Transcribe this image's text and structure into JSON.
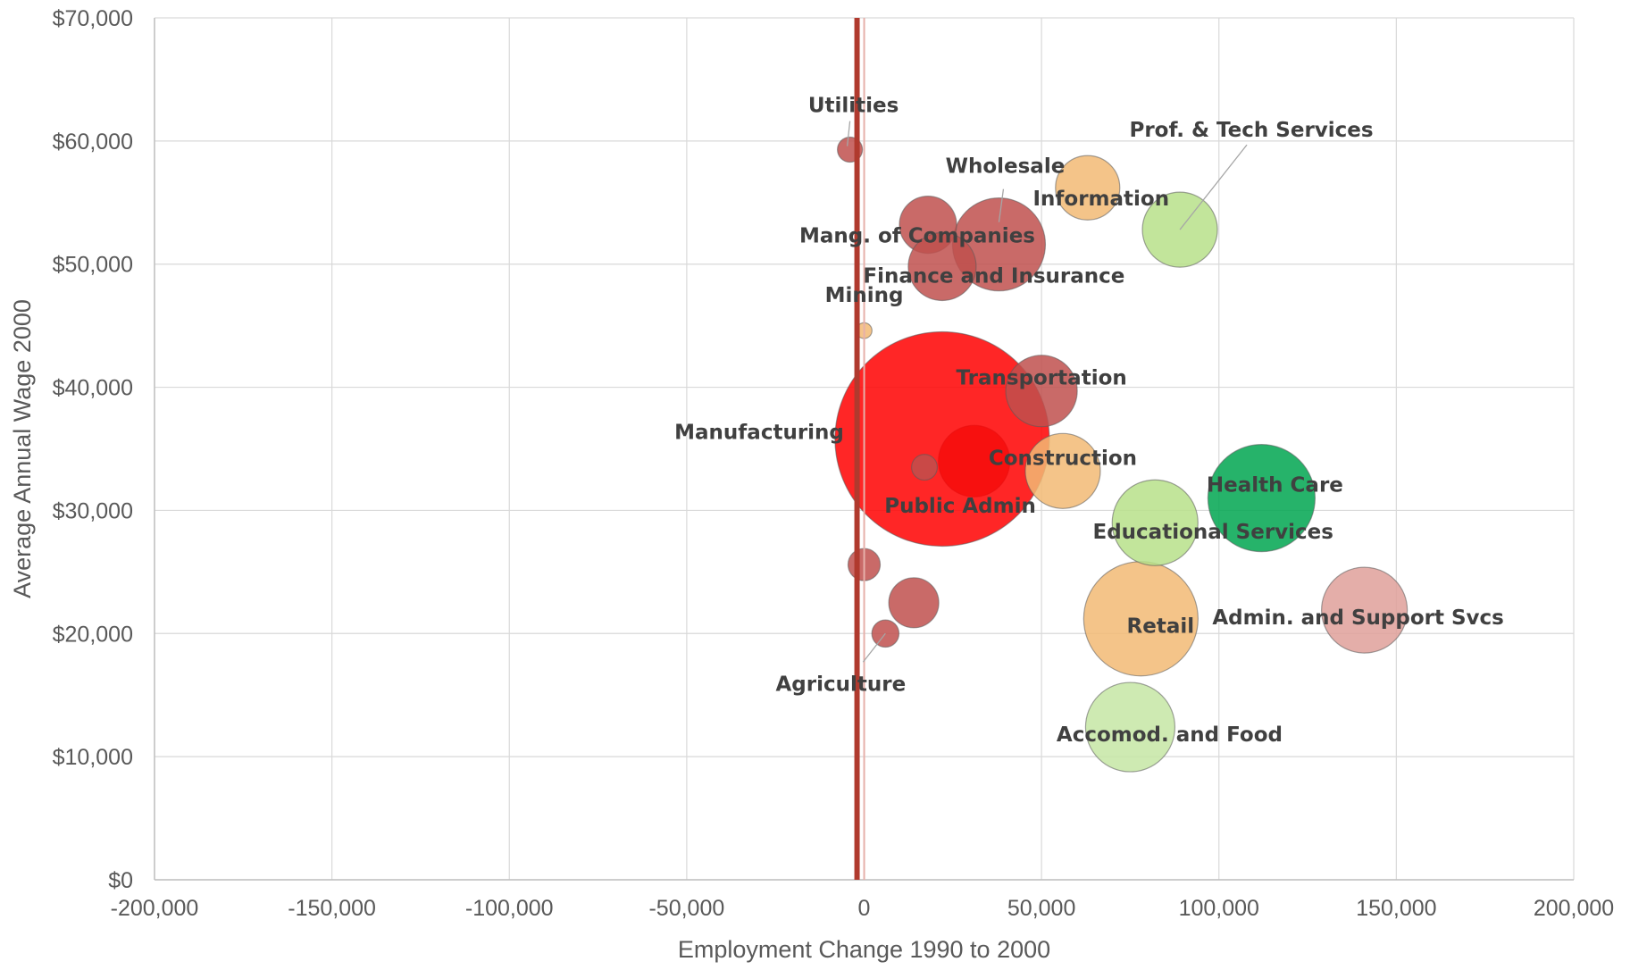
{
  "chart_data": {
    "type": "scatter",
    "subtype": "bubble",
    "xlabel": "Employment Change 1990 to 2000",
    "ylabel": "Average Annual Wage 2000",
    "xlim": [
      -200000,
      200000
    ],
    "ylim": [
      0,
      70000
    ],
    "x_ticks": [
      -200000,
      -150000,
      -100000,
      -50000,
      0,
      50000,
      100000,
      150000,
      200000
    ],
    "x_tick_labels": [
      "-200,000",
      "-150,000",
      "-100,000",
      "-50,000",
      "0",
      "50,000",
      "100,000",
      "150,000",
      "200,000"
    ],
    "y_ticks": [
      0,
      10000,
      20000,
      30000,
      40000,
      50000,
      60000,
      70000
    ],
    "y_tick_labels": [
      "$0",
      "$10,000",
      "$20,000",
      "$30,000",
      "$40,000",
      "$50,000",
      "$60,000",
      "$70,000"
    ],
    "grid": true,
    "legend": "none",
    "reference_line": {
      "x": -2000,
      "color": "#B03A2E"
    },
    "colors": {
      "dark_red": "#B5473A",
      "red": "#FF0000",
      "orange": "#F2BA74",
      "light_green": "#B7E08A",
      "pale_green": "#C6E6A4",
      "green": "#00A650",
      "pink": "#DFA09A",
      "olive": "#8EBF3F"
    },
    "points": [
      {
        "label": "",
        "x": 31000,
        "y": 34000,
        "size": 10,
        "color": "#C0504D"
      },
      {
        "label": "Manufacturing",
        "x": 22000,
        "y": 35800,
        "size": 30,
        "color": "#FF0000"
      },
      {
        "label": "Utilities",
        "x": -4000,
        "y": 59300,
        "size": 3.5,
        "color": "#C0504D"
      },
      {
        "label": "Wholesale",
        "x": 38000,
        "y": 51600,
        "size": 13,
        "color": "#C0504D"
      },
      {
        "label": "Mang. of Companies",
        "x": 18000,
        "y": 53200,
        "size": 8,
        "color": "#C0504D"
      },
      {
        "label": "Finance and Insurance",
        "x": 22000,
        "y": 49800,
        "size": 9.5,
        "color": "#C0504D"
      },
      {
        "label": "Mining",
        "x": 0,
        "y": 44600,
        "size": 2.2,
        "color": "#F2BA74"
      },
      {
        "label": "Information",
        "x": 63000,
        "y": 56200,
        "size": 9,
        "color": "#F2BA74"
      },
      {
        "label": "Prof. & Tech Services",
        "x": 89000,
        "y": 52800,
        "size": 10.5,
        "color": "#B7E08A"
      },
      {
        "label": "Transportation",
        "x": 50000,
        "y": 39700,
        "size": 10,
        "color": "#C0504D"
      },
      {
        "label": "Construction",
        "x": 56000,
        "y": 33200,
        "size": 10.5,
        "color": "#F2BA74"
      },
      {
        "label": "Public Admin",
        "x": 17000,
        "y": 33500,
        "size": 3.6,
        "color": "#C0504D"
      },
      {
        "label": "",
        "x": 0,
        "y": 25600,
        "size": 4.5,
        "color": "#C0504D"
      },
      {
        "label": "",
        "x": 14000,
        "y": 22500,
        "size": 7,
        "color": "#C0504D"
      },
      {
        "label": "Agriculture",
        "x": 6000,
        "y": 20000,
        "size": 3.8,
        "color": "#C0504D"
      },
      {
        "label": "Retail",
        "x": 78000,
        "y": 21200,
        "size": 16,
        "color": "#F2BA74"
      },
      {
        "label": "Educational Services",
        "x": 82000,
        "y": 29000,
        "size": 12,
        "color": "#B7E08A"
      },
      {
        "label": "Health Care",
        "x": 112000,
        "y": 31000,
        "size": 15,
        "color": "#00A650"
      },
      {
        "label": "Admin. and Support Svcs",
        "x": 141000,
        "y": 21900,
        "size": 12,
        "color": "#DFA09A"
      },
      {
        "label": "Accomod. and Food",
        "x": 75000,
        "y": 12400,
        "size": 12.5,
        "color": "#C6E6A4"
      }
    ]
  }
}
